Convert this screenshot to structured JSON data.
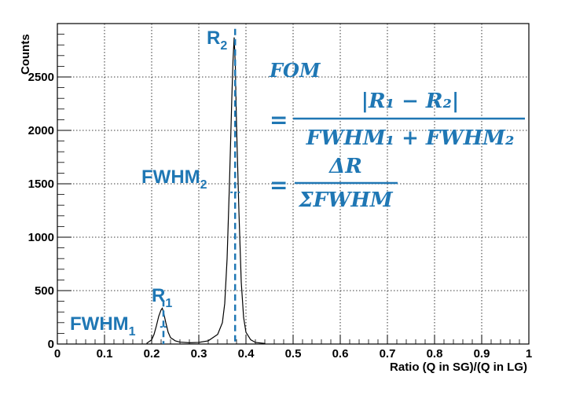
{
  "chart_data": {
    "type": "line",
    "xlabel": "Ratio (Q in SG)/(Q in LG)",
    "ylabel": "Counts",
    "xlim": [
      0,
      1
    ],
    "ylim": [
      0,
      3000
    ],
    "x_ticks": [
      "0",
      "0.1",
      "0.2",
      "0.3",
      "0.4",
      "0.5",
      "0.6",
      "0.7",
      "0.8",
      "0.9",
      "1"
    ],
    "y_ticks": [
      "0",
      "500",
      "1000",
      "1500",
      "2000",
      "2500"
    ],
    "grid": true,
    "histogram": {
      "x": [
        0.19,
        0.2,
        0.205,
        0.21,
        0.215,
        0.22,
        0.2225,
        0.225,
        0.23,
        0.235,
        0.24,
        0.25,
        0.26,
        0.28,
        0.3,
        0.32,
        0.34,
        0.35,
        0.355,
        0.36,
        0.365,
        0.37,
        0.3725,
        0.375,
        0.3775,
        0.38,
        0.385,
        0.39,
        0.395,
        0.4,
        0.41,
        0.42,
        0.44
      ],
      "y": [
        8,
        40,
        90,
        170,
        260,
        320,
        335,
        300,
        200,
        110,
        60,
        30,
        18,
        12,
        15,
        30,
        90,
        200,
        380,
        800,
        1500,
        2300,
        2650,
        2870,
        2600,
        2050,
        1250,
        580,
        250,
        110,
        40,
        15,
        5
      ]
    },
    "markers": {
      "r1": 0.225,
      "r2": 0.377,
      "fwhm1": [
        0.218,
        0.232
      ],
      "fwhm2": [
        0.367,
        0.387
      ],
      "fwhm1_level": 160,
      "fwhm2_level": 1420
    },
    "annotations": {
      "r1": "R",
      "r1_sub": "1",
      "r2": "R",
      "r2_sub": "2",
      "fwhm1": "FWHM",
      "fwhm1_sub": "1",
      "fwhm2": "FWHM",
      "fwhm2_sub": "2"
    },
    "formula": {
      "line1": "FOM",
      "eq": "=",
      "numerator": "|R₁ − R₂|",
      "denominator": "FWHM₁ + FWHM₂",
      "eq2": "=",
      "numerator2": "ΔR",
      "denominator2": "ΣFWHM"
    },
    "colors": {
      "annotation": "#1f77b4",
      "curve": "#000000"
    }
  }
}
